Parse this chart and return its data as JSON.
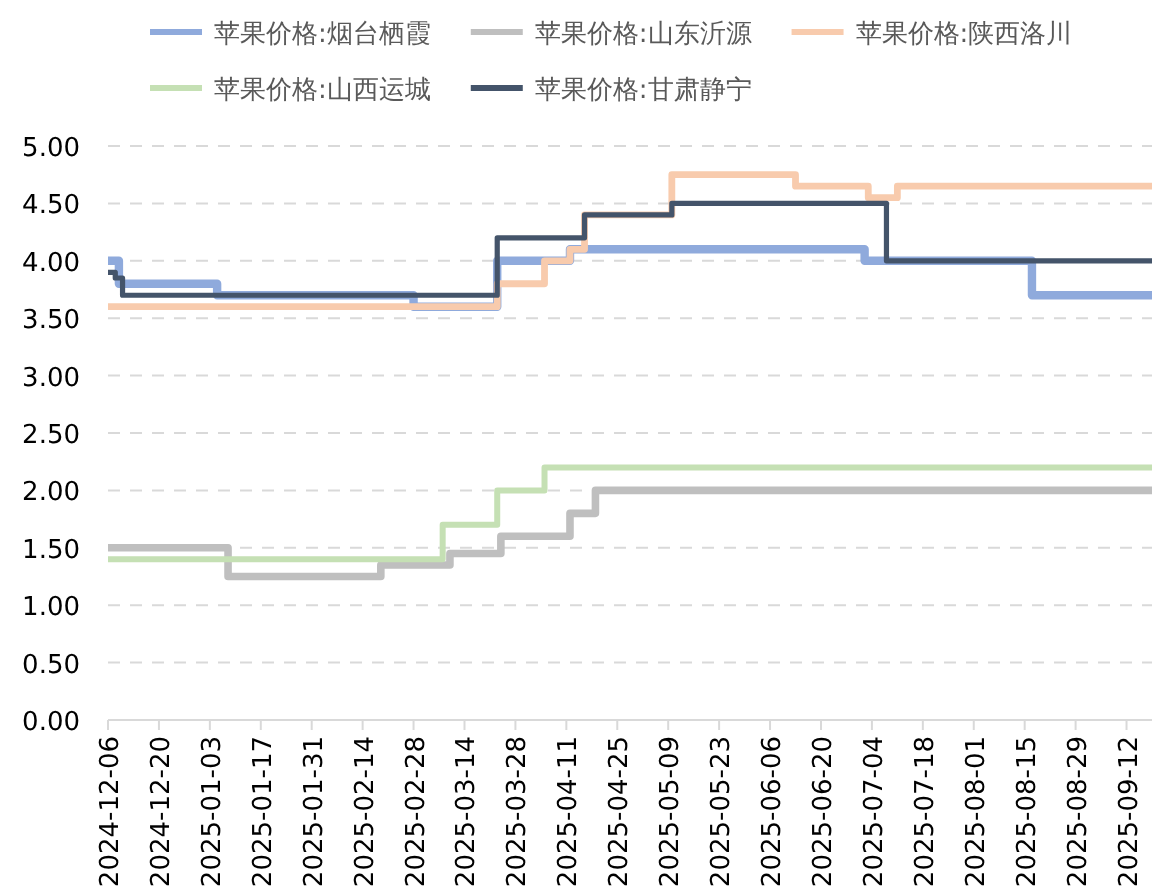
{
  "chart_data": {
    "type": "step",
    "legend": "top",
    "grid": "y",
    "marker": "none",
    "line_style": "solid",
    "xlim": [
      "2024-12-06",
      "2025-09-19"
    ],
    "xticks": [
      "2024-12-06",
      "2024-12-20",
      "2025-01-03",
      "2025-01-17",
      "2025-01-31",
      "2025-02-14",
      "2025-02-28",
      "2025-03-14",
      "2025-03-28",
      "2025-04-11",
      "2025-04-25",
      "2025-05-09",
      "2025-05-23",
      "2025-06-06",
      "2025-06-20",
      "2025-07-04",
      "2025-07-18",
      "2025-08-01",
      "2025-08-15",
      "2025-08-29",
      "2025-09-12"
    ],
    "ylim": [
      0,
      5
    ],
    "yticks": [
      {
        "value": 0,
        "label": "0.00"
      },
      {
        "value": 0.5,
        "label": "0.50"
      },
      {
        "value": 1,
        "label": "1.00"
      },
      {
        "value": 1.5,
        "label": "1.50"
      },
      {
        "value": 2,
        "label": "2.00"
      },
      {
        "value": 2.5,
        "label": "2.50"
      },
      {
        "value": 3,
        "label": "3.00"
      },
      {
        "value": 3.5,
        "label": "3.50"
      },
      {
        "value": 4,
        "label": "4.00"
      },
      {
        "value": 4.5,
        "label": "4.50"
      },
      {
        "value": 5,
        "label": "5.00"
      }
    ],
    "series": [
      {
        "name": "苹果价格:烟台栖霞",
        "color": "#8faadc",
        "x": [
          "2024-12-06",
          "2024-12-09",
          "2025-01-05",
          "2025-02-28",
          "2025-03-23",
          "2025-04-12",
          "2025-07-02",
          "2025-08-17",
          "2025-09-19"
        ],
        "values": [
          4.0,
          3.8,
          3.7,
          3.6,
          4.0,
          4.1,
          4.0,
          3.7,
          3.7
        ]
      },
      {
        "name": "苹果价格:山东沂源",
        "color": "#bfbfbf",
        "x": [
          "2024-12-06",
          "2025-01-08",
          "2025-02-19",
          "2025-03-10",
          "2025-03-24",
          "2025-04-12",
          "2025-04-19",
          "2025-09-19"
        ],
        "values": [
          1.5,
          1.25,
          1.35,
          1.45,
          1.6,
          1.8,
          2.0,
          2.0
        ]
      },
      {
        "name": "苹果价格:陕西洛川",
        "color": "#f8cbad",
        "x": [
          "2024-12-06",
          "2025-03-23",
          "2025-04-05",
          "2025-04-12",
          "2025-04-16",
          "2025-05-10",
          "2025-06-13",
          "2025-07-03",
          "2025-07-11",
          "2025-09-19"
        ],
        "values": [
          3.6,
          3.8,
          4.0,
          4.1,
          4.4,
          4.75,
          4.65,
          4.55,
          4.65,
          4.65
        ]
      },
      {
        "name": "苹果价格:山西运城",
        "color": "#c5e0b4",
        "x": [
          "2024-12-06",
          "2025-03-08",
          "2025-03-23",
          "2025-04-05",
          "2025-09-19"
        ],
        "values": [
          1.4,
          1.7,
          2.0,
          2.2,
          2.2
        ]
      },
      {
        "name": "苹果价格:甘肃静宁",
        "color": "#44546a",
        "x": [
          "2024-12-06",
          "2024-12-08",
          "2024-12-10",
          "2025-03-23",
          "2025-04-16",
          "2025-05-10",
          "2025-07-08",
          "2025-09-19"
        ],
        "values": [
          3.9,
          3.85,
          3.7,
          4.2,
          4.4,
          4.5,
          4.0,
          4.0
        ]
      }
    ]
  }
}
